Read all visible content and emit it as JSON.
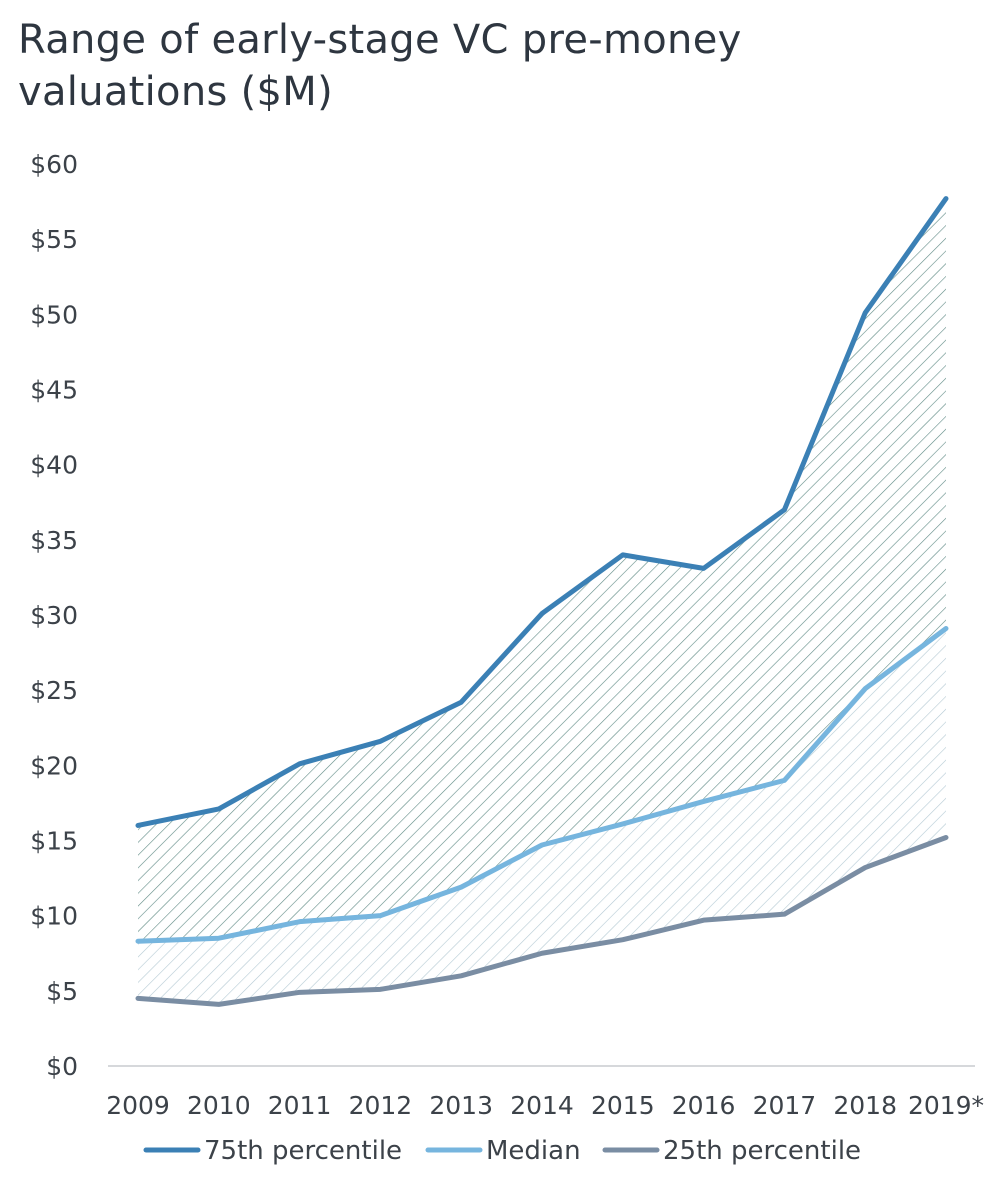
{
  "title": "Range of early-stage VC pre-money valuations ($M)",
  "chart_data": {
    "type": "area",
    "title": "Range of early-stage VC pre-money valuations ($M)",
    "xlabel": "",
    "ylabel": "",
    "categories": [
      "2009",
      "2010",
      "2011",
      "2012",
      "2013",
      "2014",
      "2015",
      "2016",
      "2017",
      "2018",
      "2019*"
    ],
    "ylim": [
      0,
      60
    ],
    "yticks": [
      0,
      5,
      10,
      15,
      20,
      25,
      30,
      35,
      40,
      45,
      50,
      55,
      60
    ],
    "ytick_labels": [
      "$0",
      "$5",
      "$10",
      "$15",
      "$20",
      "$25",
      "$30",
      "$35",
      "$40",
      "$45",
      "$50",
      "$55",
      "$60"
    ],
    "grid": false,
    "legend_position": "bottom",
    "series": [
      {
        "name": "75th percentile",
        "color": "#3b80b5",
        "values": [
          16.0,
          17.1,
          20.1,
          21.6,
          24.2,
          30.1,
          34.0,
          33.1,
          37.0,
          50.1,
          57.7
        ]
      },
      {
        "name": "Median",
        "color": "#76b5de",
        "values": [
          8.3,
          8.5,
          9.6,
          10.0,
          11.9,
          14.7,
          16.1,
          17.6,
          19.0,
          25.1,
          29.1
        ]
      },
      {
        "name": "25th percentile",
        "color": "#7a8da3",
        "values": [
          4.5,
          4.1,
          4.9,
          5.1,
          6.0,
          7.5,
          8.4,
          9.7,
          10.1,
          13.2,
          15.2
        ]
      }
    ]
  }
}
